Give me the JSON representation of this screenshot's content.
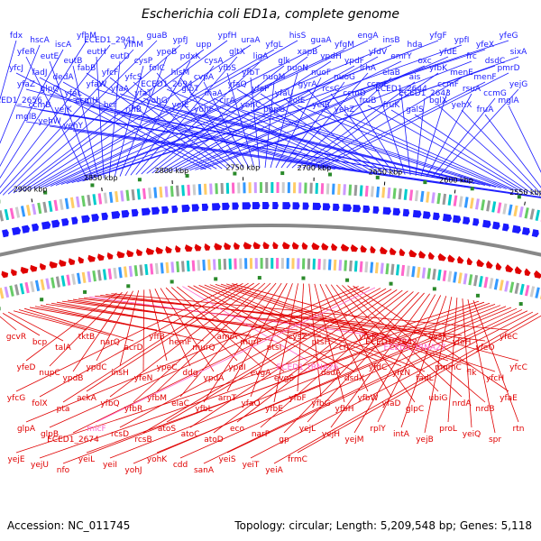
{
  "title": "Escherichia coli ED1a, complete genome",
  "footer": {
    "accession": "Accession: NC_011745",
    "summary": "Topology: circular; Length: 5,209,548 bp; Genes: 5,118"
  },
  "colors": {
    "forward": "#1a1aff",
    "reverse": "#e00000",
    "rna": "#ff66cc",
    "backbone": "#888888",
    "marker": "#2a8a2a"
  },
  "ticks": [
    "2900 kbp",
    "2850 kbp",
    "2800 kbp",
    "2750 kbp",
    "2700 kbp",
    "2650 kbp",
    "2600 kbp",
    "2550 kbp"
  ],
  "forward_genes": [
    "fdx",
    "hscA",
    "iscA",
    "yfhM",
    "ECED1_2941",
    "yfhM",
    "guaB",
    "ypfJ",
    "upp",
    "ypfH",
    "uraA",
    "yfgL",
    "hisS",
    "guaA",
    "yfgM",
    "engA",
    "insB",
    "hda",
    "yfgF",
    "ypfI",
    "yfeX",
    "yfeG",
    "yfeR",
    "eutE",
    "eutB",
    "eutH",
    "eutD",
    "cysP",
    "ypeB",
    "pdxK",
    "cysA",
    "gltX",
    "ligA",
    "glk",
    "xapB",
    "ypdH",
    "ypdF",
    "yfdV",
    "emrY",
    "oxc",
    "yfdE",
    "frc",
    "dsdC",
    "sixA",
    "yfcJ",
    "fadJ",
    "dedA",
    "fabB",
    "yfcF",
    "yfcS",
    "folC",
    "hisM",
    "cvpA",
    "yfbS",
    "yfbT",
    "nuoM",
    "nuoN",
    "nuoF",
    "nuoG",
    "lrhA",
    "elaB",
    "ais",
    "yfbK",
    "menE",
    "menF",
    "pmrD",
    "yfaZ",
    "glpQ",
    "yfaL",
    "yfaW",
    "yfaA",
    "yfaT",
    "ECED1_2694",
    "glpT",
    "inaA",
    "yfaQ",
    "yfaP",
    "yfaU",
    "gyrA",
    "rcsC",
    "ccmD",
    "ccmE",
    "ECED1_2644",
    "ECED1_2643",
    "ccmF",
    "rsuA",
    "ccmG",
    "yejG",
    "ECED1_2656",
    "ccmB",
    "yejK",
    "ccmH",
    "bcr",
    "rihB",
    "yohG",
    "yeiE",
    "yohF",
    "cirA",
    "yohC",
    "pbpG",
    "folE",
    "yeiB",
    "yehZ",
    "fruB",
    "fruK",
    "galS",
    "bglX",
    "yehX",
    "fruA",
    "mglA",
    "mglB",
    "yehW",
    "yehY"
  ],
  "reverse_genes": [
    "gcvR",
    "bcp",
    "talA",
    "tktB",
    "narQ",
    "acrD",
    "yffB",
    "hemF",
    "murQ",
    "amiA",
    "murP",
    "ptsI",
    "cysZ",
    "ptsH",
    "crr",
    "yfeK",
    "ECED1_2842",
    "ECED1_tRNA27",
    "cysK",
    "yfeH",
    "yfeO",
    "yfeC",
    "yfeD",
    "nupC",
    "ypdB",
    "ypdC",
    "insH",
    "yfeN",
    "ypeC",
    "ddg",
    "ypdA",
    "ypdI",
    "evgA",
    "evgS",
    "ECED1_tRNA26",
    "dsdA",
    "dsdX",
    "yfdC",
    "yfcN",
    "fadL",
    "mnmC",
    "flk",
    "yfcH",
    "yfcC",
    "yfcG",
    "folX",
    "pta",
    "ackA",
    "yfbQ",
    "yfbR",
    "yfbM",
    "elaC",
    "yfbL",
    "arnT",
    "yfaO",
    "yfbE",
    "yfbF",
    "yfbG",
    "yfbH",
    "yfbW",
    "yfaD",
    "glpC",
    "ubiG",
    "nrdA",
    "nrdB",
    "yfaE",
    "glpA",
    "glpB",
    "ECED1_2674",
    "micF",
    "rcsD",
    "rcsB",
    "atoS",
    "atoC",
    "atoD",
    "eco",
    "narP",
    "gp",
    "yejL",
    "yejH",
    "yejM",
    "rplY",
    "intA",
    "yejB",
    "proL",
    "yeiQ",
    "spr",
    "rtn",
    "yejE",
    "yejU",
    "nfo",
    "yeiL",
    "yeiI",
    "yohJ",
    "yohK",
    "cdd",
    "sanA",
    "yeiS",
    "yeiT",
    "yeiA",
    "frmC"
  ]
}
